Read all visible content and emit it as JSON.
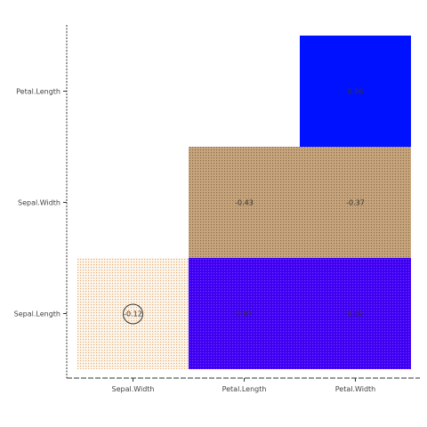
{
  "chart_data": {
    "type": "heatmap",
    "title": "",
    "xlabel": "",
    "ylabel": "",
    "x_categories": [
      "Sepal.Width",
      "Petal.Length",
      "Petal.Width"
    ],
    "y_categories": [
      "Sepal.Length",
      "Sepal.Width",
      "Petal.Length"
    ],
    "cells": [
      {
        "x": "Sepal.Width",
        "y": "Sepal.Length",
        "value": -0.12,
        "label": "-0.12",
        "fill": "#fdf7ee",
        "pattern": "#e8a96a",
        "circled": true
      },
      {
        "x": "Petal.Length",
        "y": "Sepal.Length",
        "value": 0.87,
        "label": "0.87",
        "fill": "#3a00f0",
        "pattern": "#7a2cff",
        "circled": false
      },
      {
        "x": "Petal.Width",
        "y": "Sepal.Length",
        "value": 0.82,
        "label": "0.82",
        "fill": "#3a00f0",
        "pattern": "#7a2cff",
        "circled": false
      },
      {
        "x": "Petal.Length",
        "y": "Sepal.Width",
        "value": -0.43,
        "label": "-0.43",
        "fill": "#c8a67c",
        "pattern": "#8a6a52",
        "circled": false
      },
      {
        "x": "Petal.Width",
        "y": "Sepal.Width",
        "value": -0.37,
        "label": "-0.37",
        "fill": "#c8a67c",
        "pattern": "#8a6a52",
        "circled": false
      },
      {
        "x": "Petal.Width",
        "y": "Petal.Length",
        "value": 0.96,
        "label": "0.96",
        "fill": "#0011ff",
        "pattern": "#0011ff",
        "circled": false
      }
    ],
    "grid": false,
    "legend": "none"
  }
}
